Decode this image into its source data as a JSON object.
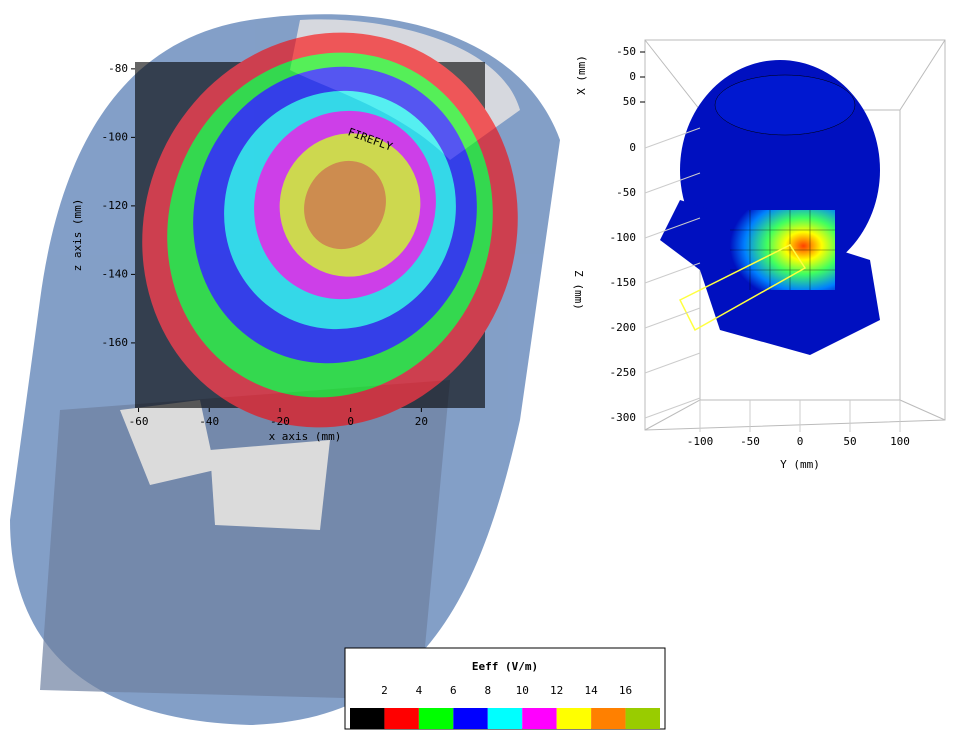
{
  "phone_map": {
    "brand": "FIREFLY",
    "xlabel": "x axis (mm)",
    "ylabel": "z axis (mm)",
    "xlim": [
      -61,
      38
    ],
    "ylim": [
      -78,
      -179
    ],
    "xticks": [
      -60,
      -40,
      -20,
      0,
      20
    ],
    "yticks": [
      -80,
      -100,
      -120,
      -140,
      -160
    ]
  },
  "head_plot": {
    "xlabel": "X (mm)",
    "ylabel": "Y (mm)",
    "zlabel": "Z (mm)",
    "xlim": [
      -60,
      60
    ],
    "ylim": [
      -148,
      148
    ],
    "zlim": [
      50,
      -310
    ],
    "xticks": [
      -50,
      0,
      50
    ],
    "yticks": [
      -100,
      -50,
      0,
      50,
      100
    ],
    "zticks": [
      0,
      -50,
      -100,
      -150,
      -200,
      -250,
      -300
    ]
  },
  "legend": {
    "title": "Eeff (V/m)",
    "ticks": [
      2,
      4,
      6,
      8,
      10,
      12,
      14,
      16
    ],
    "colors": [
      "#000000",
      "#ff0000",
      "#00ff00",
      "#0000ff",
      "#00ffff",
      "#ff00ff",
      "#ffff00",
      "#ff8000",
      "#99cc00"
    ]
  }
}
